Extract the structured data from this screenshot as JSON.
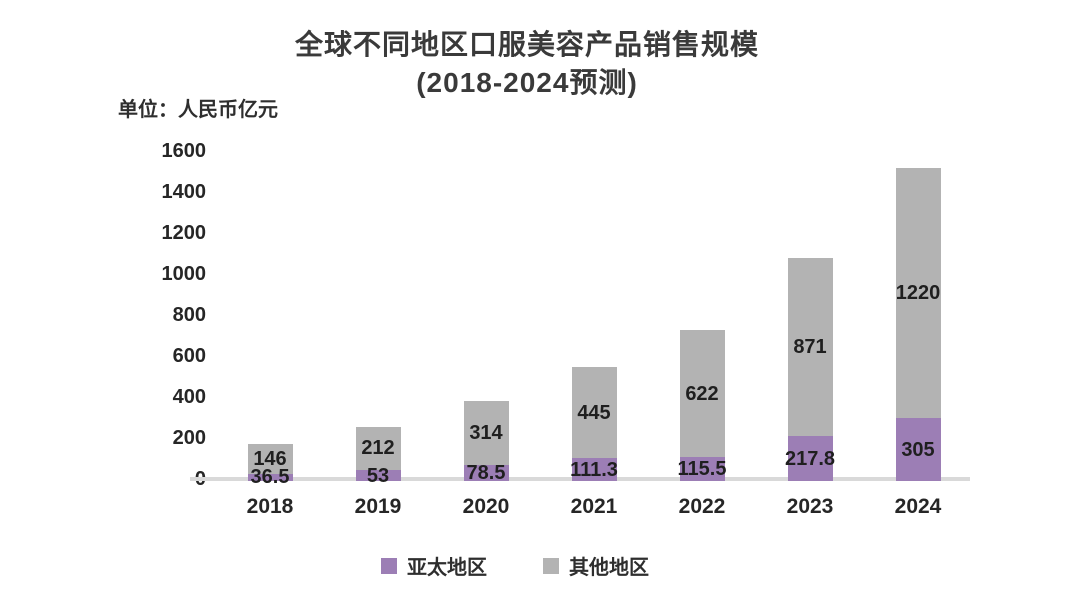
{
  "title": {
    "line1": "全球不同地区口服美容产品销售规模",
    "line2": "(2018-2024预测)"
  },
  "unit_label": "单位：人民币亿元",
  "colors": {
    "apac": "#9C7EB5",
    "other": "#B3B3B3",
    "axis_line": "#D9D9D9",
    "label_text": "#262626"
  },
  "chart_data": {
    "type": "bar",
    "stacked": true,
    "title": "全球不同地区口服美容产品销售规模(2018-2024预测)",
    "ylabel": "单位：人民币亿元",
    "categories": [
      "2018",
      "2019",
      "2020",
      "2021",
      "2022",
      "2023",
      "2024"
    ],
    "series": [
      {
        "name": "亚太地区",
        "color": "#9C7EB5",
        "values": [
          36.5,
          53,
          78.5,
          111.3,
          115.5,
          217.8,
          305
        ]
      },
      {
        "name": "其他地区",
        "color": "#B3B3B3",
        "values": [
          146,
          212,
          314,
          445,
          622,
          871,
          1220
        ]
      }
    ],
    "y_ticks": [
      0,
      200,
      400,
      600,
      800,
      1000,
      1200,
      1400,
      1600
    ],
    "ylim": [
      0,
      1600
    ],
    "grid": false,
    "legend_position": "bottom",
    "data_labels": "inside-center"
  },
  "legend": {
    "items": [
      {
        "label": "亚太地区",
        "color": "#9C7EB5"
      },
      {
        "label": "其他地区",
        "color": "#B3B3B3"
      }
    ]
  }
}
